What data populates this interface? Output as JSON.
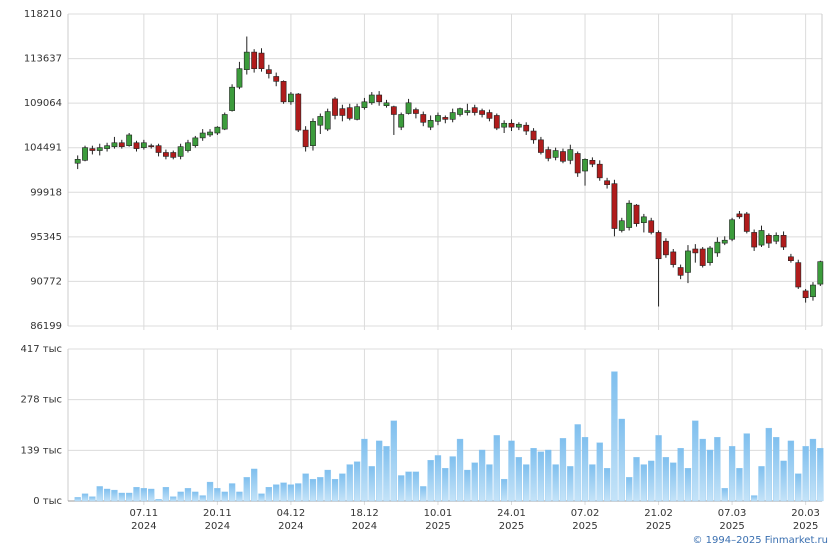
{
  "chart_data": [
    {
      "type": "candlestick",
      "up_color": "#3c9c3c",
      "down_color": "#b01c1c",
      "open": [
        102900,
        103200,
        104400,
        104200,
        104400,
        104600,
        105000,
        104700,
        105000,
        104500,
        104700,
        104700,
        104000,
        104000,
        103600,
        104200,
        104700,
        105500,
        105800,
        106000,
        106400,
        108300,
        110700,
        112500,
        114300,
        114200,
        112500,
        111800,
        111300,
        109200,
        110000,
        106300,
        104700,
        106800,
        106400,
        109500,
        108500,
        108600,
        107400,
        108600,
        109100,
        109900,
        108800,
        108700,
        106600,
        108000,
        108400,
        107900,
        106600,
        107200,
        107600,
        107400,
        107900,
        108100,
        108600,
        108300,
        108100,
        107800,
        106600,
        107000,
        106600,
        106800,
        106200,
        105300,
        104300,
        103500,
        104100,
        103200,
        103900,
        102100,
        103200,
        102800,
        101100,
        100800,
        96000,
        96300,
        98600,
        96800,
        97000,
        95800,
        94900,
        93800,
        92200,
        91700,
        94100,
        94100,
        92700,
        93700,
        94700,
        95100,
        97700,
        97700,
        95800,
        94500,
        95500,
        94900,
        95500,
        93300,
        92700,
        89800,
        89200,
        90500
      ],
      "high": [
        103700,
        104700,
        104700,
        104900,
        105000,
        105600,
        105300,
        106000,
        105200,
        105300,
        104900,
        104900,
        104300,
        104200,
        104900,
        105300,
        105700,
        106400,
        106400,
        106700,
        108100,
        111000,
        113300,
        115900,
        114600,
        114700,
        113000,
        112200,
        111400,
        110200,
        110100,
        106700,
        107500,
        108000,
        108500,
        109700,
        108900,
        109000,
        109000,
        109600,
        110200,
        110300,
        109400,
        108800,
        108100,
        109500,
        108600,
        108200,
        107800,
        108100,
        107800,
        108500,
        108600,
        109000,
        108900,
        108500,
        108400,
        108000,
        107300,
        107400,
        107100,
        107100,
        106500,
        105600,
        104600,
        104500,
        104400,
        104800,
        104100,
        103400,
        103500,
        103200,
        101400,
        101200,
        97300,
        99100,
        98700,
        97700,
        97300,
        96000,
        95200,
        94100,
        92500,
        94500,
        94600,
        94300,
        94400,
        95300,
        95400,
        97300,
        98000,
        97900,
        96100,
        96500,
        95700,
        95800,
        95900,
        93600,
        93000,
        90000,
        90700,
        92900
      ],
      "low": [
        102300,
        103100,
        103800,
        103700,
        104100,
        104400,
        104400,
        104600,
        104100,
        104300,
        104400,
        103600,
        103300,
        103300,
        103300,
        104000,
        104500,
        105200,
        105600,
        105800,
        106300,
        108200,
        110500,
        112000,
        112200,
        112300,
        111600,
        110800,
        109000,
        108900,
        106100,
        104100,
        104200,
        105900,
        106200,
        107400,
        107200,
        107300,
        107300,
        108400,
        108900,
        108800,
        108600,
        105800,
        106300,
        107900,
        107500,
        106700,
        106300,
        106800,
        107000,
        107100,
        107700,
        107800,
        107800,
        107600,
        107200,
        106300,
        106000,
        106200,
        106300,
        105800,
        104900,
        103800,
        103100,
        103200,
        102900,
        102800,
        101500,
        100600,
        102500,
        101100,
        100300,
        95400,
        95800,
        96000,
        96400,
        95800,
        95600,
        88200,
        93200,
        92200,
        91000,
        90600,
        92700,
        92200,
        92400,
        93300,
        94500,
        94900,
        97200,
        95700,
        93900,
        94300,
        94200,
        94600,
        94000,
        92700,
        90000,
        88600,
        88800,
        90300
      ],
      "close": [
        103300,
        104500,
        104200,
        104500,
        104700,
        105000,
        104600,
        105800,
        104400,
        105000,
        104600,
        104000,
        103600,
        103500,
        104600,
        105000,
        105500,
        106000,
        106100,
        106600,
        107900,
        110700,
        112600,
        114300,
        112600,
        112600,
        112100,
        111300,
        109200,
        110000,
        106300,
        104600,
        107200,
        107700,
        108200,
        107800,
        107800,
        107500,
        108700,
        109200,
        109900,
        109200,
        109100,
        107900,
        107900,
        109100,
        108000,
        107100,
        107300,
        107800,
        107400,
        108100,
        108500,
        108300,
        108100,
        107900,
        107500,
        106500,
        107000,
        106600,
        106900,
        106200,
        105300,
        104000,
        103400,
        104200,
        103100,
        104300,
        101900,
        103300,
        102800,
        101400,
        100700,
        96200,
        97000,
        98800,
        96700,
        97400,
        95800,
        93100,
        93500,
        92500,
        91400,
        93900,
        93700,
        92400,
        94200,
        94800,
        95000,
        97100,
        97400,
        95900,
        94300,
        96000,
        94700,
        95500,
        94300,
        92900,
        90200,
        89100,
        90400,
        92800
      ],
      "ylim": [
        86199,
        118210
      ],
      "yticks": [
        86199,
        90772,
        95345,
        99918,
        104491,
        109064,
        113637,
        118210
      ],
      "grid": true
    },
    {
      "type": "bar",
      "color": "#8cc6f0",
      "categories": [
        null,
        null,
        null,
        null,
        null,
        null,
        null,
        null,
        null,
        "07.11\n2024",
        null,
        null,
        null,
        null,
        null,
        null,
        null,
        null,
        null,
        "20.11\n2024",
        null,
        null,
        null,
        null,
        null,
        null,
        null,
        null,
        null,
        "04.12\n2024",
        null,
        null,
        null,
        null,
        null,
        null,
        null,
        null,
        null,
        "18.12\n2024",
        null,
        null,
        null,
        null,
        null,
        null,
        null,
        null,
        null,
        "10.01\n2025",
        null,
        null,
        null,
        null,
        null,
        null,
        null,
        null,
        null,
        "24.01\n2025",
        null,
        null,
        null,
        null,
        null,
        null,
        null,
        null,
        null,
        "07.02\n2025",
        null,
        null,
        null,
        null,
        null,
        null,
        null,
        null,
        null,
        "21.02\n2025",
        null,
        null,
        null,
        null,
        null,
        null,
        null,
        null,
        null,
        "07.03\n2025",
        null,
        null,
        null,
        null,
        null,
        null,
        null,
        null,
        null,
        "20.03\n2025",
        null,
        null
      ],
      "values": [
        10000,
        20000,
        12000,
        40000,
        33000,
        30000,
        22000,
        22000,
        38000,
        35000,
        33000,
        5000,
        38000,
        12000,
        25000,
        35000,
        25000,
        15000,
        52000,
        35000,
        25000,
        48000,
        25000,
        65000,
        88000,
        20000,
        38000,
        45000,
        50000,
        45000,
        48000,
        75000,
        60000,
        65000,
        85000,
        60000,
        75000,
        100000,
        108000,
        170000,
        95000,
        165000,
        150000,
        220000,
        70000,
        80000,
        80000,
        40000,
        112000,
        125000,
        90000,
        122000,
        170000,
        85000,
        105000,
        140000,
        100000,
        180000,
        60000,
        165000,
        120000,
        100000,
        145000,
        135000,
        140000,
        100000,
        172000,
        95000,
        210000,
        175000,
        100000,
        160000,
        90000,
        355000,
        225000,
        65000,
        120000,
        100000,
        110000,
        180000,
        120000,
        105000,
        145000,
        90000,
        220000,
        170000,
        140000,
        175000,
        35000,
        150000,
        90000,
        185000,
        15000,
        95000,
        200000,
        175000,
        110000,
        165000,
        75000,
        150000,
        170000,
        145000
      ],
      "ylim": [
        0,
        417000
      ],
      "yticks": [
        {
          "value": 0,
          "label": "0 тыс"
        },
        {
          "value": 139000,
          "label": "139 тыс"
        },
        {
          "value": 278000,
          "label": "278 тыс"
        },
        {
          "value": 417000,
          "label": "417 тыс"
        }
      ],
      "grid": true
    }
  ],
  "copyright": "© 1994–2025 Finmarket.ru"
}
